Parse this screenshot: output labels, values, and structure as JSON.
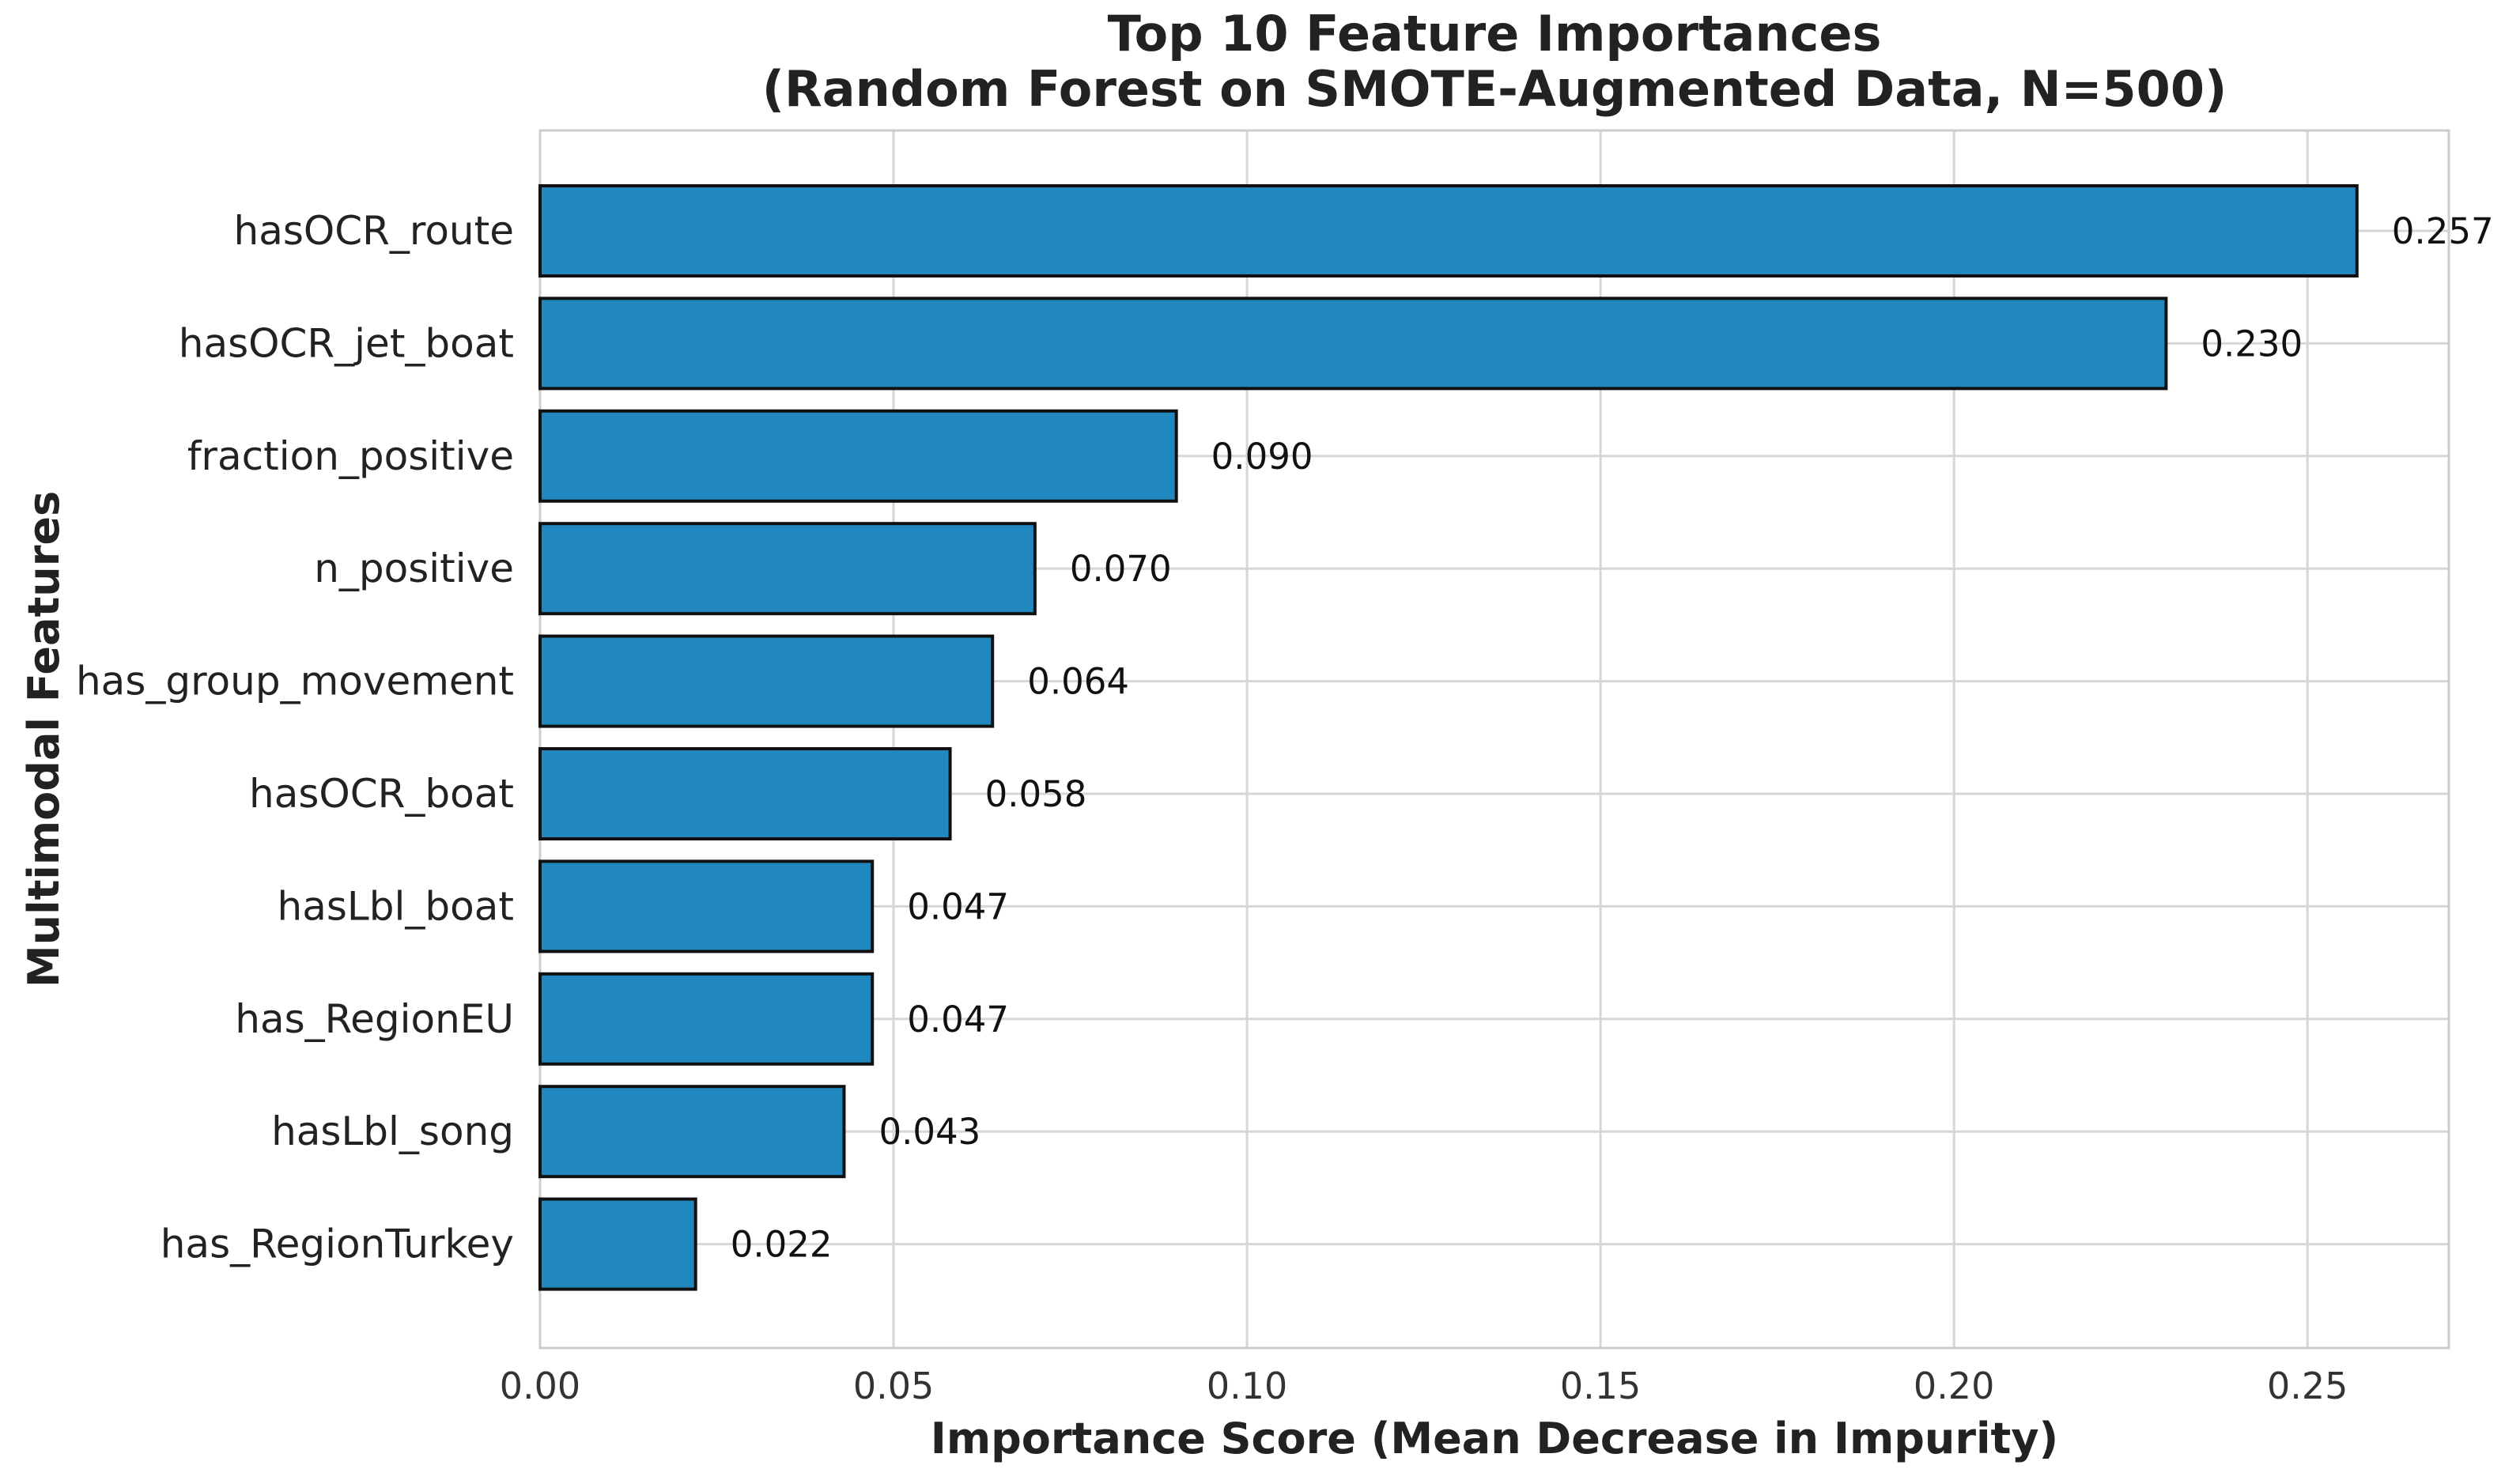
{
  "chart_data": {
    "type": "bar",
    "orientation": "horizontal",
    "title": [
      "Top 10 Feature Importances",
      "(Random Forest on SMOTE-Augmented Data, N=500)"
    ],
    "xlabel": "Importance Score (Mean Decrease in Impurity)",
    "ylabel": "Multimodal Features",
    "categories": [
      "hasOCR_route",
      "hasOCR_jet_boat",
      "fraction_positive",
      "n_positive",
      "has_group_movement",
      "hasOCR_boat",
      "hasLbl_boat",
      "has_RegionEU",
      "hasLbl_song",
      "has_RegionTurkey"
    ],
    "values": [
      0.257,
      0.23,
      0.09,
      0.07,
      0.064,
      0.058,
      0.047,
      0.047,
      0.043,
      0.022
    ],
    "data_labels": [
      "0.257",
      "0.230",
      "0.090",
      "0.070",
      "0.064",
      "0.058",
      "0.047",
      "0.047",
      "0.043",
      "0.022"
    ],
    "xticks": [
      "0.00",
      "0.05",
      "0.10",
      "0.15",
      "0.20",
      "0.25"
    ],
    "xtick_values": [
      0,
      0.05,
      0.1,
      0.15,
      0.2,
      0.25
    ],
    "xlim": [
      0,
      0.27
    ],
    "grid": true,
    "legend": "none",
    "bar_color": "#2188bf",
    "bar_edge_color": "#111111"
  }
}
